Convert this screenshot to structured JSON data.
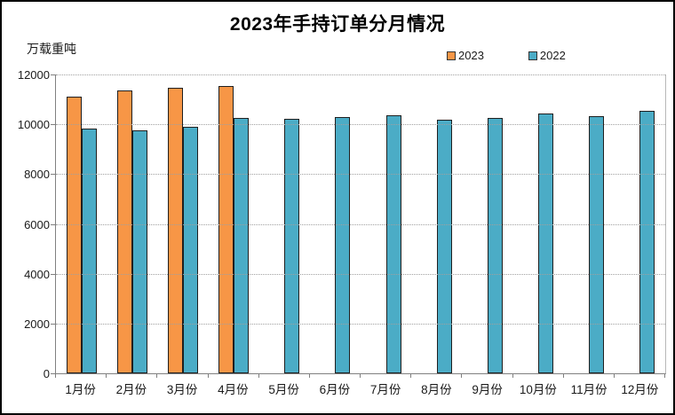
{
  "frame": {
    "background": "#ffffff",
    "border_color": "#000000"
  },
  "chart_data": {
    "type": "bar",
    "title": "2023年手持订单分月情况",
    "ylabel": "万载重吨",
    "xlabel": "",
    "categories": [
      "1月份",
      "2月份",
      "3月份",
      "4月份",
      "5月份",
      "6月份",
      "7月份",
      "8月份",
      "9月份",
      "10月份",
      "11月份",
      "12月份"
    ],
    "series": [
      {
        "name": "2023",
        "color": "#F79646",
        "values": [
          11094,
          11374,
          11452,
          11522,
          null,
          null,
          null,
          null,
          null,
          null,
          null,
          null
        ]
      },
      {
        "name": "2022",
        "color": "#4BACC6",
        "values": [
          9843,
          9774,
          9896,
          10247,
          10203,
          10274,
          10366,
          10187,
          10246,
          10435,
          10339,
          10557
        ]
      }
    ],
    "ylim": [
      0,
      12000
    ],
    "yticks": [
      12000,
      10000,
      8000,
      6000,
      4000,
      2000,
      0
    ],
    "grid": "horizontal-dotted",
    "gridline_color": "#a0a0a0",
    "axis_color": "#808080",
    "bar_border_color": "#1f1f1f",
    "legend_position": "top-right",
    "legend_swatch_border_color": "#333333"
  }
}
